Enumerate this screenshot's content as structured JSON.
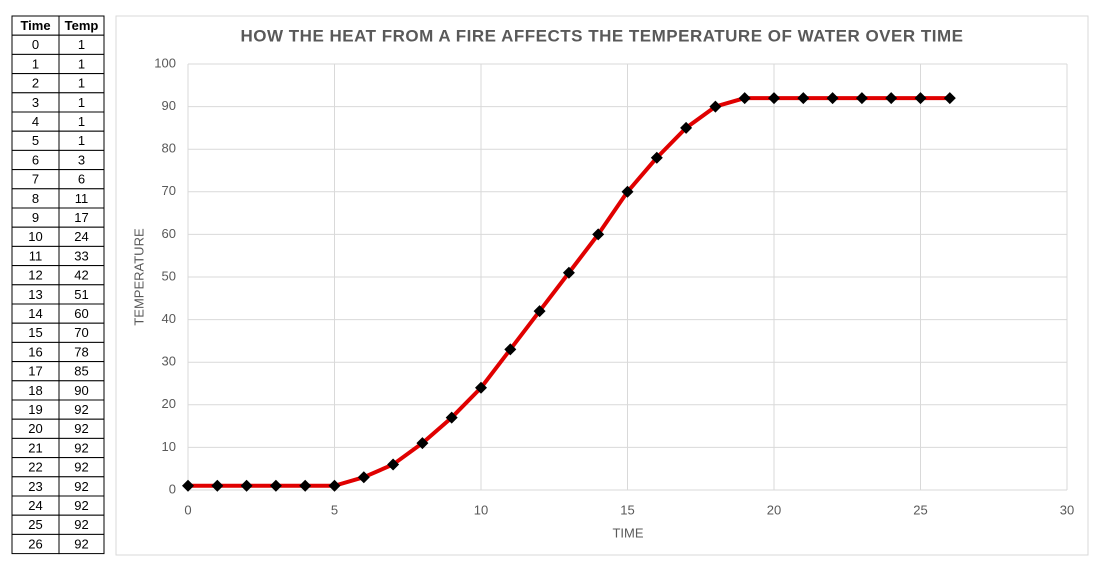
{
  "table": {
    "headers": [
      "Time",
      "Temp"
    ]
  },
  "chart_data": {
    "type": "line",
    "title": "HOW THE HEAT FROM A FIRE AFFECTS THE TEMPERATURE OF WATER OVER TIME",
    "x_label": "TIME",
    "y_label": "TEMPERATURE",
    "x": [
      0,
      1,
      2,
      3,
      4,
      5,
      6,
      7,
      8,
      9,
      10,
      11,
      12,
      13,
      14,
      15,
      16,
      17,
      18,
      19,
      20,
      21,
      22,
      23,
      24,
      25,
      26
    ],
    "series": [
      {
        "name": "Temp",
        "color": "#e00000",
        "marker_color": "#000000",
        "values": [
          1,
          1,
          1,
          1,
          1,
          1,
          3,
          6,
          11,
          17,
          24,
          33,
          42,
          51,
          60,
          70,
          78,
          85,
          90,
          92,
          92,
          92,
          92,
          92,
          92,
          92,
          92
        ]
      }
    ],
    "xlim": [
      0,
      30
    ],
    "xticks": [
      0,
      5,
      10,
      15,
      20,
      25,
      30
    ],
    "ylim": [
      0,
      100
    ],
    "yticks": [
      0,
      10,
      20,
      30,
      40,
      50,
      60,
      70,
      80,
      90,
      100
    ],
    "grid": true
  }
}
